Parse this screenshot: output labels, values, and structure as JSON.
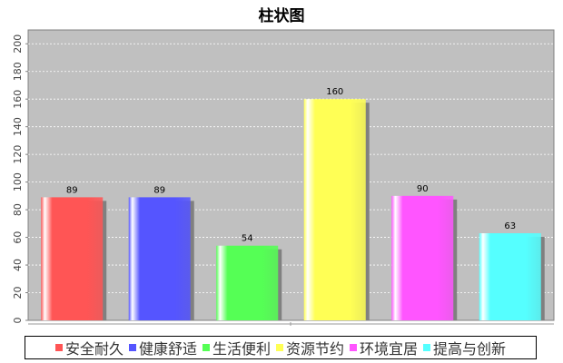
{
  "chart_data": {
    "type": "bar",
    "title": "柱状图",
    "categories": [
      "安全耐久",
      "健康舒适",
      "生活便利",
      "资源节约",
      "环境宜居",
      "提高与创新"
    ],
    "values": [
      89,
      89,
      54,
      160,
      90,
      63
    ],
    "colors": [
      "#ff5555",
      "#5555ff",
      "#55ff55",
      "#ffff55",
      "#ff55ff",
      "#55ffff"
    ],
    "ylim": [
      0,
      210
    ],
    "yticks": [
      0,
      20,
      40,
      60,
      80,
      100,
      120,
      140,
      160,
      180,
      200
    ],
    "grid": true,
    "legend": "bottom",
    "xlabel": "",
    "ylabel": ""
  }
}
